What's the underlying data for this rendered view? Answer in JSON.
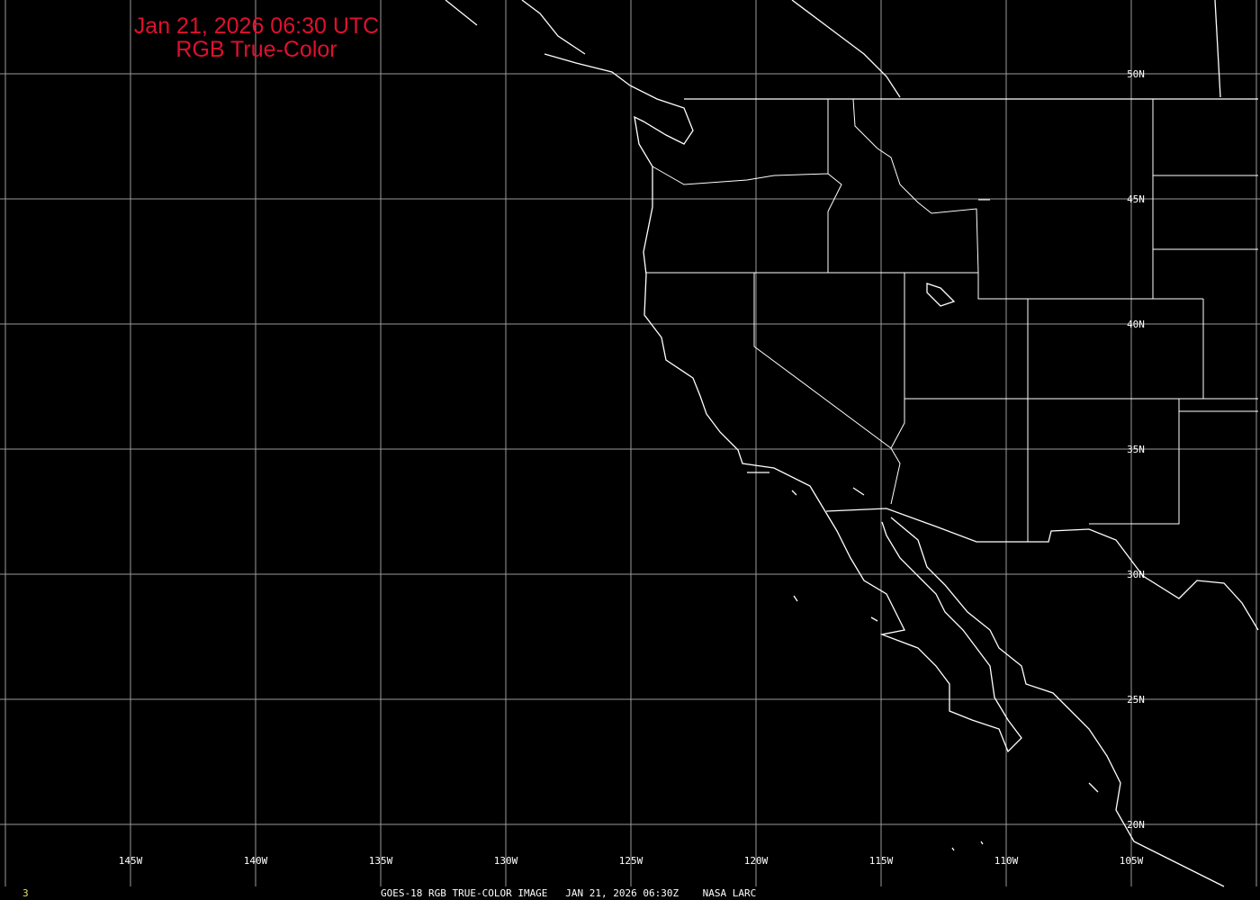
{
  "title": {
    "line1": "Jan 21, 2026 06:30 UTC",
    "line2": "RGB True-Color"
  },
  "colors": {
    "title": "#e0102e",
    "grid": "#9a9a9a",
    "coast": "#ffffff",
    "frame_number": "#e8e060"
  },
  "grid": {
    "longitudes": [
      "145W",
      "140W",
      "135W",
      "130W",
      "125W",
      "120W",
      "115W",
      "110W",
      "105W"
    ],
    "latitudes": [
      "50N",
      "45N",
      "40N",
      "35N",
      "30N",
      "25N",
      "20N"
    ]
  },
  "footer": {
    "frame_number": "3",
    "caption": "GOES-18 RGB TRUE-COLOR IMAGE   JAN 21, 2026 06:30Z    NASA LARC"
  }
}
